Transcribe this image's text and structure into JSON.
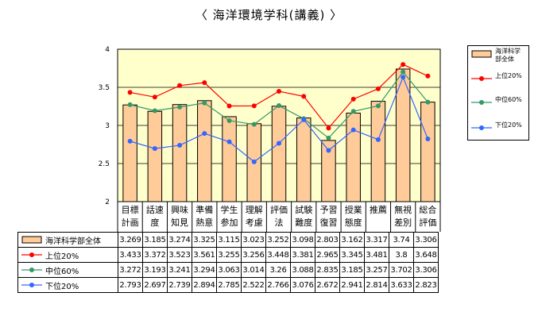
{
  "page_title": "〈 海洋環境学科(講義) 〉",
  "chart_data": {
    "type": "bar",
    "title": "〈 海洋環境学科(講義) 〉",
    "categories": [
      "目標\n計画",
      "話速\n度",
      "興味\n知見",
      "準備\n熱意",
      "学生\n参加",
      "理解\n考慮",
      "評価\n法",
      "試験\n難度",
      "予習\n復習",
      "授業\n態度",
      "推薦",
      "無視\n差別",
      "総合\n評価"
    ],
    "ylim": [
      2,
      4
    ],
    "yticks": [
      "2",
      "2.5",
      "3",
      "3.5",
      "4"
    ],
    "grid": true,
    "legend_position": "right",
    "series": [
      {
        "name": "海洋科学部全体",
        "kind": "bar",
        "color": "#ffcc99",
        "values": [
          3.269,
          3.185,
          3.274,
          3.325,
          3.115,
          3.023,
          3.252,
          3.098,
          2.803,
          3.162,
          3.317,
          3.74,
          3.306
        ],
        "labels": [
          "3.269",
          "3.185",
          "3.274",
          "3.325",
          "3.115",
          "3.023",
          "3.252",
          "3.098",
          "2.803",
          "3.162",
          "3.317",
          "3.74",
          "3.306"
        ]
      },
      {
        "name": "上位20%",
        "kind": "line",
        "color": "#ff0000",
        "values": [
          3.433,
          3.372,
          3.523,
          3.561,
          3.255,
          3.256,
          3.448,
          3.381,
          2.965,
          3.345,
          3.481,
          3.8,
          3.648
        ],
        "labels": [
          "3.433",
          "3.372",
          "3.523",
          "3.561",
          "3.255",
          "3.256",
          "3.448",
          "3.381",
          "2.965",
          "3.345",
          "3.481",
          "3.8",
          "3.648"
        ]
      },
      {
        "name": "中位60%",
        "kind": "line",
        "color": "#339966",
        "values": [
          3.272,
          3.193,
          3.241,
          3.294,
          3.063,
          3.014,
          3.26,
          3.088,
          2.835,
          3.185,
          3.257,
          3.702,
          3.306
        ],
        "labels": [
          "3.272",
          "3.193",
          "3.241",
          "3.294",
          "3.063",
          "3.014",
          "3.26",
          "3.088",
          "2.835",
          "3.185",
          "3.257",
          "3.702",
          "3.306"
        ]
      },
      {
        "name": "下位20%",
        "kind": "line",
        "color": "#3366ff",
        "values": [
          2.793,
          2.697,
          2.739,
          2.894,
          2.785,
          2.522,
          2.766,
          3.076,
          2.672,
          2.941,
          2.814,
          3.633,
          2.823
        ],
        "labels": [
          "2.793",
          "2.697",
          "2.739",
          "2.894",
          "2.785",
          "2.522",
          "2.766",
          "3.076",
          "2.672",
          "2.941",
          "2.814",
          "3.633",
          "2.823"
        ]
      }
    ],
    "legend": [
      "海洋科学\n部全体",
      "上位20%",
      "中位60%",
      "下位20%"
    ],
    "plot_background": "#ffffcc",
    "bar_border": "#000000"
  }
}
